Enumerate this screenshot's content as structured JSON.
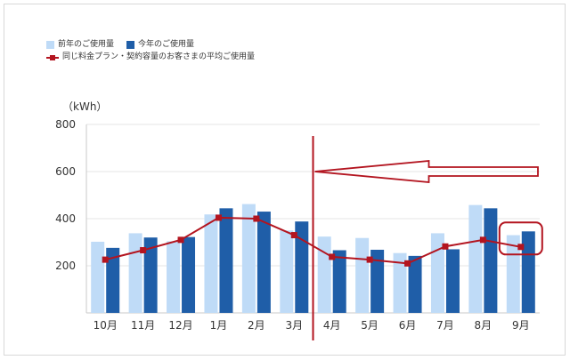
{
  "colors": {
    "previous_bar": "#bfdbf7",
    "current_bar": "#1f5ea8",
    "average_line": "#b3141f",
    "grid": "#e6e6e6",
    "axis": "#c8c8c8",
    "annotation": "#b3141f"
  },
  "legend": {
    "previous": "前年のご使用量",
    "current": "今年のご使用量",
    "average": "同じ料金プラン・契約容量のお客さまの平均ご使用量"
  },
  "chart_data": {
    "type": "bar",
    "unit_label": "（kWh）",
    "ylim": [
      0,
      800
    ],
    "yticks": [
      {
        "value": 200,
        "label": "200"
      },
      {
        "value": 400,
        "label": "400"
      },
      {
        "value": 600,
        "label": "600"
      },
      {
        "value": 800,
        "label": "800"
      }
    ],
    "categories": [
      "10月",
      "11月",
      "12月",
      "1月",
      "2月",
      "3月",
      "4月",
      "5月",
      "6月",
      "7月",
      "8月",
      "9月"
    ],
    "series": [
      {
        "key": "previous",
        "name": "前年のご使用量",
        "kind": "bar",
        "values": [
          302,
          338,
          304,
          418,
          462,
          350,
          324,
          318,
          254,
          338,
          458,
          330
        ]
      },
      {
        "key": "current",
        "name": "今年のご使用量",
        "kind": "bar",
        "values": [
          276,
          320,
          322,
          444,
          430,
          388,
          266,
          268,
          242,
          270,
          444,
          346
        ]
      },
      {
        "key": "average",
        "name": "同じ料金プラン・契約容量のお客さまの平均ご使用量",
        "kind": "line",
        "values": [
          226,
          266,
          310,
          404,
          400,
          330,
          238,
          226,
          210,
          282,
          310,
          280
        ]
      }
    ],
    "grid": true,
    "legend_position": "top-left",
    "annotations": {
      "divider_between": [
        "3月",
        "4月"
      ],
      "arrow_direction": "left",
      "highlight_category": "9月"
    }
  }
}
